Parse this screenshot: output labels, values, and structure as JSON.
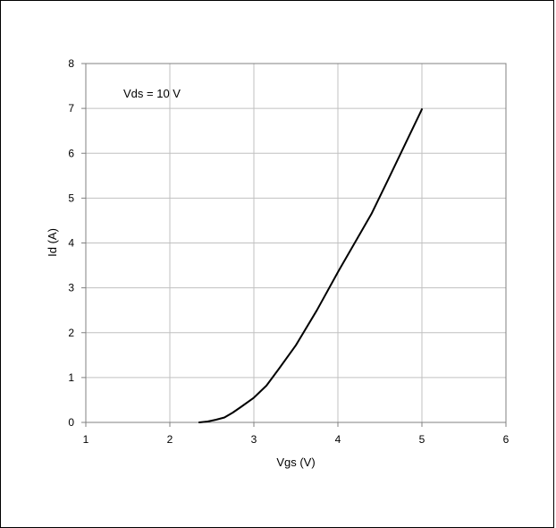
{
  "chart_data": {
    "type": "line",
    "xlabel": "Vgs (V)",
    "ylabel": "Id (A)",
    "annotation": "Vds = 10 V",
    "xlim": [
      1,
      6
    ],
    "ylim": [
      0,
      8
    ],
    "xticks": [
      1,
      2,
      3,
      4,
      5,
      6
    ],
    "yticks": [
      0,
      1,
      2,
      3,
      4,
      5,
      6,
      7,
      8
    ],
    "grid": true,
    "line_color": "#000000",
    "grid_color": "#c0c0c0",
    "series": [
      {
        "x": [
          2.35,
          2.45,
          2.55,
          2.65,
          2.75,
          2.85,
          3.0,
          3.15,
          3.3,
          3.5,
          3.75,
          4.0,
          4.2,
          4.4,
          4.6,
          4.8,
          5.0
        ],
        "y": [
          0.0,
          0.02,
          0.06,
          0.11,
          0.22,
          0.35,
          0.55,
          0.82,
          1.2,
          1.72,
          2.5,
          3.35,
          4.0,
          4.65,
          5.42,
          6.2,
          6.98
        ]
      }
    ]
  }
}
